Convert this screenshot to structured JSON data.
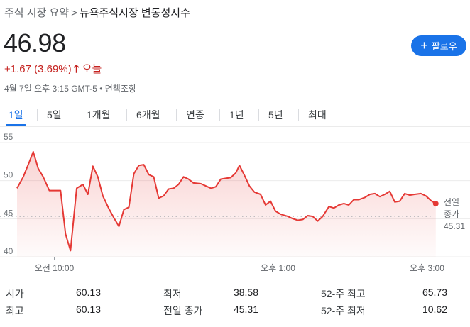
{
  "breadcrumb": {
    "root": "주식 시장 요약",
    "separator": ">",
    "current": "뉴욕주식시장 변동성지수"
  },
  "quote": {
    "price": "46.98",
    "change": "+1.67 (3.69%)",
    "arrow": "🡑",
    "period": "오늘"
  },
  "meta": "4월 7일 오후 3:15 GMT-5 • 면책조항",
  "follow_button": {
    "label": "팔로우",
    "icon": "plus-icon"
  },
  "tabs": [
    "1일",
    "5일",
    "1개월",
    "6개월",
    "연중",
    "1년",
    "5년",
    "최대"
  ],
  "active_tab": 0,
  "colors": {
    "line": "#e53935",
    "accent": "#1a73e8",
    "negative": "#c5221f"
  },
  "stats": [
    [
      {
        "label": "시가",
        "value": "60.13"
      },
      {
        "label": "최저",
        "value": "38.58"
      },
      {
        "label": "52-주 최고",
        "value": "65.73"
      }
    ],
    [
      {
        "label": "최고",
        "value": "60.13"
      },
      {
        "label": "전일 종가",
        "value": "45.31"
      },
      {
        "label": "52-주 최저",
        "value": "10.62"
      }
    ]
  ],
  "chart_data": {
    "type": "line",
    "y_ticks": [
      "55",
      "50",
      "45",
      "40"
    ],
    "ylim": [
      40,
      55
    ],
    "x_ticks": [
      {
        "label": "오전 10:00",
        "t": 30
      },
      {
        "label": "오후 1:00",
        "t": 210
      },
      {
        "label": "오후 3:00",
        "t": 330
      }
    ],
    "xlim": [
      0,
      390
    ],
    "grid": "horizontal",
    "previous_close": {
      "value": 45.31,
      "label_line1": "전일",
      "label_line2": "종가",
      "label_value": "45.31"
    },
    "values": [
      [
        0,
        49.0
      ],
      [
        5,
        50.5
      ],
      [
        10,
        52.5
      ],
      [
        13,
        53.8
      ],
      [
        17,
        51.6
      ],
      [
        21,
        50.5
      ],
      [
        26,
        48.7
      ],
      [
        35,
        48.7
      ],
      [
        39,
        43.0
      ],
      [
        43,
        40.8
      ],
      [
        48,
        49.0
      ],
      [
        53,
        49.5
      ],
      [
        57,
        48.2
      ],
      [
        61,
        51.9
      ],
      [
        65,
        50.5
      ],
      [
        69,
        48.0
      ],
      [
        74,
        46.3
      ],
      [
        78,
        45.1
      ],
      [
        82,
        44.0
      ],
      [
        86,
        46.2
      ],
      [
        90,
        46.5
      ],
      [
        94,
        50.9
      ],
      [
        98,
        52.0
      ],
      [
        102,
        52.1
      ],
      [
        106,
        50.8
      ],
      [
        110,
        50.5
      ],
      [
        114,
        47.7
      ],
      [
        118,
        48.0
      ],
      [
        122,
        48.9
      ],
      [
        126,
        49.0
      ],
      [
        130,
        49.5
      ],
      [
        134,
        50.5
      ],
      [
        138,
        50.2
      ],
      [
        142,
        49.7
      ],
      [
        148,
        49.6
      ],
      [
        152,
        49.3
      ],
      [
        156,
        49.0
      ],
      [
        160,
        49.2
      ],
      [
        164,
        50.2
      ],
      [
        168,
        50.3
      ],
      [
        172,
        50.4
      ],
      [
        176,
        51.0
      ],
      [
        179,
        52.0
      ],
      [
        183,
        50.7
      ],
      [
        187,
        49.3
      ],
      [
        191,
        48.5
      ],
      [
        196,
        48.2
      ],
      [
        200,
        46.8
      ],
      [
        204,
        47.3
      ],
      [
        208,
        46.0
      ],
      [
        212,
        45.6
      ],
      [
        218,
        45.3
      ],
      [
        222,
        45.0
      ],
      [
        226,
        44.8
      ],
      [
        230,
        44.9
      ],
      [
        234,
        45.4
      ],
      [
        238,
        45.3
      ],
      [
        242,
        44.7
      ],
      [
        246,
        45.3
      ],
      [
        251,
        46.6
      ],
      [
        255,
        46.4
      ],
      [
        259,
        46.8
      ],
      [
        263,
        47.0
      ],
      [
        267,
        46.8
      ],
      [
        271,
        47.5
      ],
      [
        275,
        47.5
      ],
      [
        280,
        47.8
      ],
      [
        284,
        48.2
      ],
      [
        288,
        48.3
      ],
      [
        292,
        47.9
      ],
      [
        296,
        48.2
      ],
      [
        300,
        48.6
      ],
      [
        304,
        47.2
      ],
      [
        308,
        47.3
      ],
      [
        312,
        48.3
      ],
      [
        316,
        48.1
      ],
      [
        320,
        48.2
      ],
      [
        325,
        48.3
      ],
      [
        329,
        48.0
      ],
      [
        333,
        47.4
      ],
      [
        337,
        46.98
      ]
    ]
  }
}
